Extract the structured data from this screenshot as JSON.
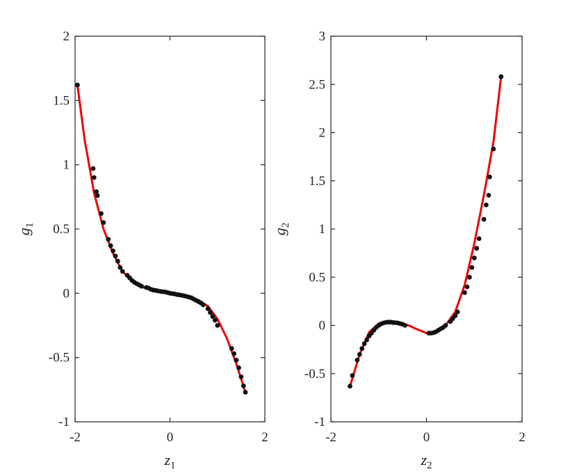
{
  "chart_data": [
    {
      "type": "scatter",
      "xlabel": "z",
      "xlabel_sub": "1",
      "ylabel": "g",
      "ylabel_sub": "1",
      "xlim": [
        -2,
        2
      ],
      "ylim": [
        -1,
        2
      ],
      "xticks": [
        "-2",
        "0",
        "2"
      ],
      "yticks": [
        "-1",
        "-0.5",
        "0",
        "0.5",
        "1",
        "1.5",
        "2"
      ],
      "grid": false,
      "colors": {
        "line": "#ee0000",
        "points": "#111111"
      },
      "series": [
        {
          "kind": "line",
          "x": [
            -1.95,
            -1.8,
            -1.6,
            -1.4,
            -1.2,
            -1.0,
            -0.8,
            -0.6,
            -0.4,
            -0.2,
            0.0,
            0.2,
            0.4,
            0.6,
            0.8,
            1.0,
            1.2,
            1.4,
            1.59
          ],
          "y": [
            1.62,
            1.2,
            0.78,
            0.5,
            0.31,
            0.17,
            0.09,
            0.05,
            0.025,
            0.01,
            0.0,
            -0.01,
            -0.025,
            -0.055,
            -0.1,
            -0.2,
            -0.35,
            -0.55,
            -0.77
          ]
        },
        {
          "kind": "scatter",
          "x": [
            -1.95,
            -1.62,
            -1.6,
            -1.55,
            -1.53,
            -1.45,
            -1.4,
            -1.3,
            -1.25,
            -1.2,
            -1.15,
            -1.1,
            -1.05,
            -1.0,
            -0.9,
            -0.85,
            -0.8,
            -0.75,
            -0.7,
            -0.65,
            -0.6,
            -0.5,
            -0.45,
            -0.4,
            -0.35,
            -0.3,
            -0.25,
            -0.2,
            -0.15,
            -0.1,
            -0.05,
            0.0,
            0.05,
            0.1,
            0.15,
            0.2,
            0.25,
            0.3,
            0.35,
            0.4,
            0.45,
            0.5,
            0.55,
            0.6,
            0.65,
            0.7,
            0.8,
            0.85,
            0.9,
            0.95,
            1.0,
            1.3,
            1.35,
            1.4,
            1.45,
            1.5,
            1.55,
            1.59
          ],
          "y": [
            1.62,
            0.97,
            0.9,
            0.79,
            0.76,
            0.62,
            0.55,
            0.42,
            0.37,
            0.33,
            0.29,
            0.25,
            0.2,
            0.17,
            0.14,
            0.12,
            0.1,
            0.085,
            0.075,
            0.065,
            0.055,
            0.045,
            0.04,
            0.03,
            0.025,
            0.022,
            0.018,
            0.015,
            0.012,
            0.01,
            0.005,
            0.0,
            -0.003,
            -0.006,
            -0.01,
            -0.013,
            -0.016,
            -0.02,
            -0.025,
            -0.03,
            -0.035,
            -0.045,
            -0.055,
            -0.065,
            -0.075,
            -0.09,
            -0.12,
            -0.15,
            -0.18,
            -0.21,
            -0.25,
            -0.43,
            -0.47,
            -0.52,
            -0.58,
            -0.65,
            -0.72,
            -0.77
          ]
        }
      ]
    },
    {
      "type": "scatter",
      "xlabel": "z",
      "xlabel_sub": "2",
      "ylabel": "g",
      "ylabel_sub": "2",
      "xlim": [
        -2,
        2
      ],
      "ylim": [
        -1,
        3
      ],
      "xticks": [
        "-2",
        "0",
        "2"
      ],
      "yticks": [
        "-1",
        "-0.5",
        "0",
        "0.5",
        "1",
        "1.5",
        "2",
        "2.5",
        "3"
      ],
      "grid": false,
      "colors": {
        "line": "#ee0000",
        "points": "#111111"
      },
      "series": [
        {
          "kind": "line",
          "x": [
            -1.6,
            -1.4,
            -1.2,
            -1.0,
            -0.8,
            -0.6,
            -0.4,
            -0.2,
            0.0,
            0.2,
            0.4,
            0.6,
            0.8,
            1.0,
            1.2,
            1.4,
            1.56
          ],
          "y": [
            -0.63,
            -0.3,
            -0.07,
            0.02,
            0.035,
            0.025,
            0.005,
            -0.04,
            -0.08,
            -0.07,
            0.0,
            0.14,
            0.42,
            0.85,
            1.35,
            1.9,
            2.58
          ]
        },
        {
          "kind": "scatter",
          "x": [
            -1.6,
            -1.55,
            -1.45,
            -1.4,
            -1.35,
            -1.3,
            -1.25,
            -1.2,
            -1.15,
            -1.1,
            -1.05,
            -1.0,
            -0.95,
            -0.9,
            -0.85,
            -0.8,
            -0.75,
            -0.7,
            -0.65,
            -0.6,
            -0.55,
            -0.5,
            -0.45,
            0.05,
            0.1,
            0.15,
            0.2,
            0.25,
            0.3,
            0.35,
            0.4,
            0.5,
            0.55,
            0.6,
            0.65,
            0.8,
            0.85,
            0.9,
            0.95,
            1.0,
            1.05,
            1.1,
            1.2,
            1.25,
            1.3,
            1.32,
            1.4,
            1.56
          ],
          "y": [
            -0.63,
            -0.52,
            -0.36,
            -0.3,
            -0.24,
            -0.19,
            -0.15,
            -0.11,
            -0.08,
            -0.05,
            -0.02,
            0.0,
            0.015,
            0.025,
            0.032,
            0.035,
            0.034,
            0.03,
            0.028,
            0.025,
            0.018,
            0.012,
            0.0,
            -0.08,
            -0.08,
            -0.075,
            -0.065,
            -0.05,
            -0.035,
            -0.02,
            0.0,
            0.04,
            0.07,
            0.1,
            0.14,
            0.34,
            0.4,
            0.5,
            0.6,
            0.7,
            0.8,
            0.9,
            1.1,
            1.25,
            1.35,
            1.54,
            1.83,
            2.58
          ]
        }
      ]
    }
  ]
}
